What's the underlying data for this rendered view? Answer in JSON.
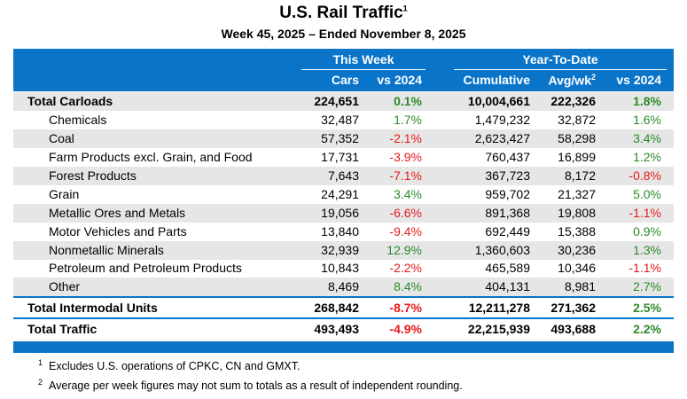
{
  "title": "U.S. Rail Traffic",
  "title_note": "1",
  "subtitle": "Week 45, 2025 – Ended November 8, 2025",
  "groups": [
    "This Week",
    "Year-To-Date"
  ],
  "columns": [
    "Cars",
    "vs 2024",
    "Cumulative",
    "Avg/wk",
    "vs 2024"
  ],
  "avg_note": "2",
  "rows": [
    {
      "label": "Total Carloads",
      "bold": true,
      "cells": [
        "224,651",
        "0.1%",
        "10,004,661",
        "222,326",
        "1.8%"
      ]
    },
    {
      "label": "Chemicals",
      "bold": false,
      "cells": [
        "32,487",
        "1.7%",
        "1,479,232",
        "32,872",
        "1.6%"
      ]
    },
    {
      "label": "Coal",
      "bold": false,
      "cells": [
        "57,352",
        "-2.1%",
        "2,623,427",
        "58,298",
        "3.4%"
      ]
    },
    {
      "label": "Farm Products excl. Grain, and Food",
      "bold": false,
      "cells": [
        "17,731",
        "-3.9%",
        "760,437",
        "16,899",
        "1.2%"
      ]
    },
    {
      "label": "Forest Products",
      "bold": false,
      "cells": [
        "7,643",
        "-7.1%",
        "367,723",
        "8,172",
        "-0.8%"
      ]
    },
    {
      "label": "Grain",
      "bold": false,
      "cells": [
        "24,291",
        "3.4%",
        "959,702",
        "21,327",
        "5.0%"
      ]
    },
    {
      "label": "Metallic Ores and Metals",
      "bold": false,
      "cells": [
        "19,056",
        "-6.6%",
        "891,368",
        "19,808",
        "-1.1%"
      ]
    },
    {
      "label": "Motor Vehicles and Parts",
      "bold": false,
      "cells": [
        "13,840",
        "-9.4%",
        "692,449",
        "15,388",
        "0.9%"
      ]
    },
    {
      "label": "Nonmetallic Minerals",
      "bold": false,
      "cells": [
        "32,939",
        "12.9%",
        "1,360,603",
        "30,236",
        "1.3%"
      ]
    },
    {
      "label": "Petroleum and Petroleum Products",
      "bold": false,
      "cells": [
        "10,843",
        "-2.2%",
        "465,589",
        "10,346",
        "-1.1%"
      ]
    },
    {
      "label": "Other",
      "bold": false,
      "cells": [
        "8,469",
        "8.4%",
        "404,131",
        "8,981",
        "2.7%"
      ]
    },
    {
      "label": "Total Intermodal Units",
      "bold": true,
      "cells": [
        "268,842",
        "-8.7%",
        "12,211,278",
        "271,362",
        "2.5%"
      ]
    },
    {
      "label": "Total Traffic",
      "bold": true,
      "cells": [
        "493,493",
        "-4.9%",
        "22,215,939",
        "493,688",
        "2.2%"
      ]
    }
  ],
  "footnotes": [
    {
      "mark": "1",
      "text": "Excludes U.S. operations of CPKC, CN and GMXT."
    },
    {
      "mark": "2",
      "text": "Average per week figures may not sum to totals as a result of independent rounding."
    }
  ]
}
